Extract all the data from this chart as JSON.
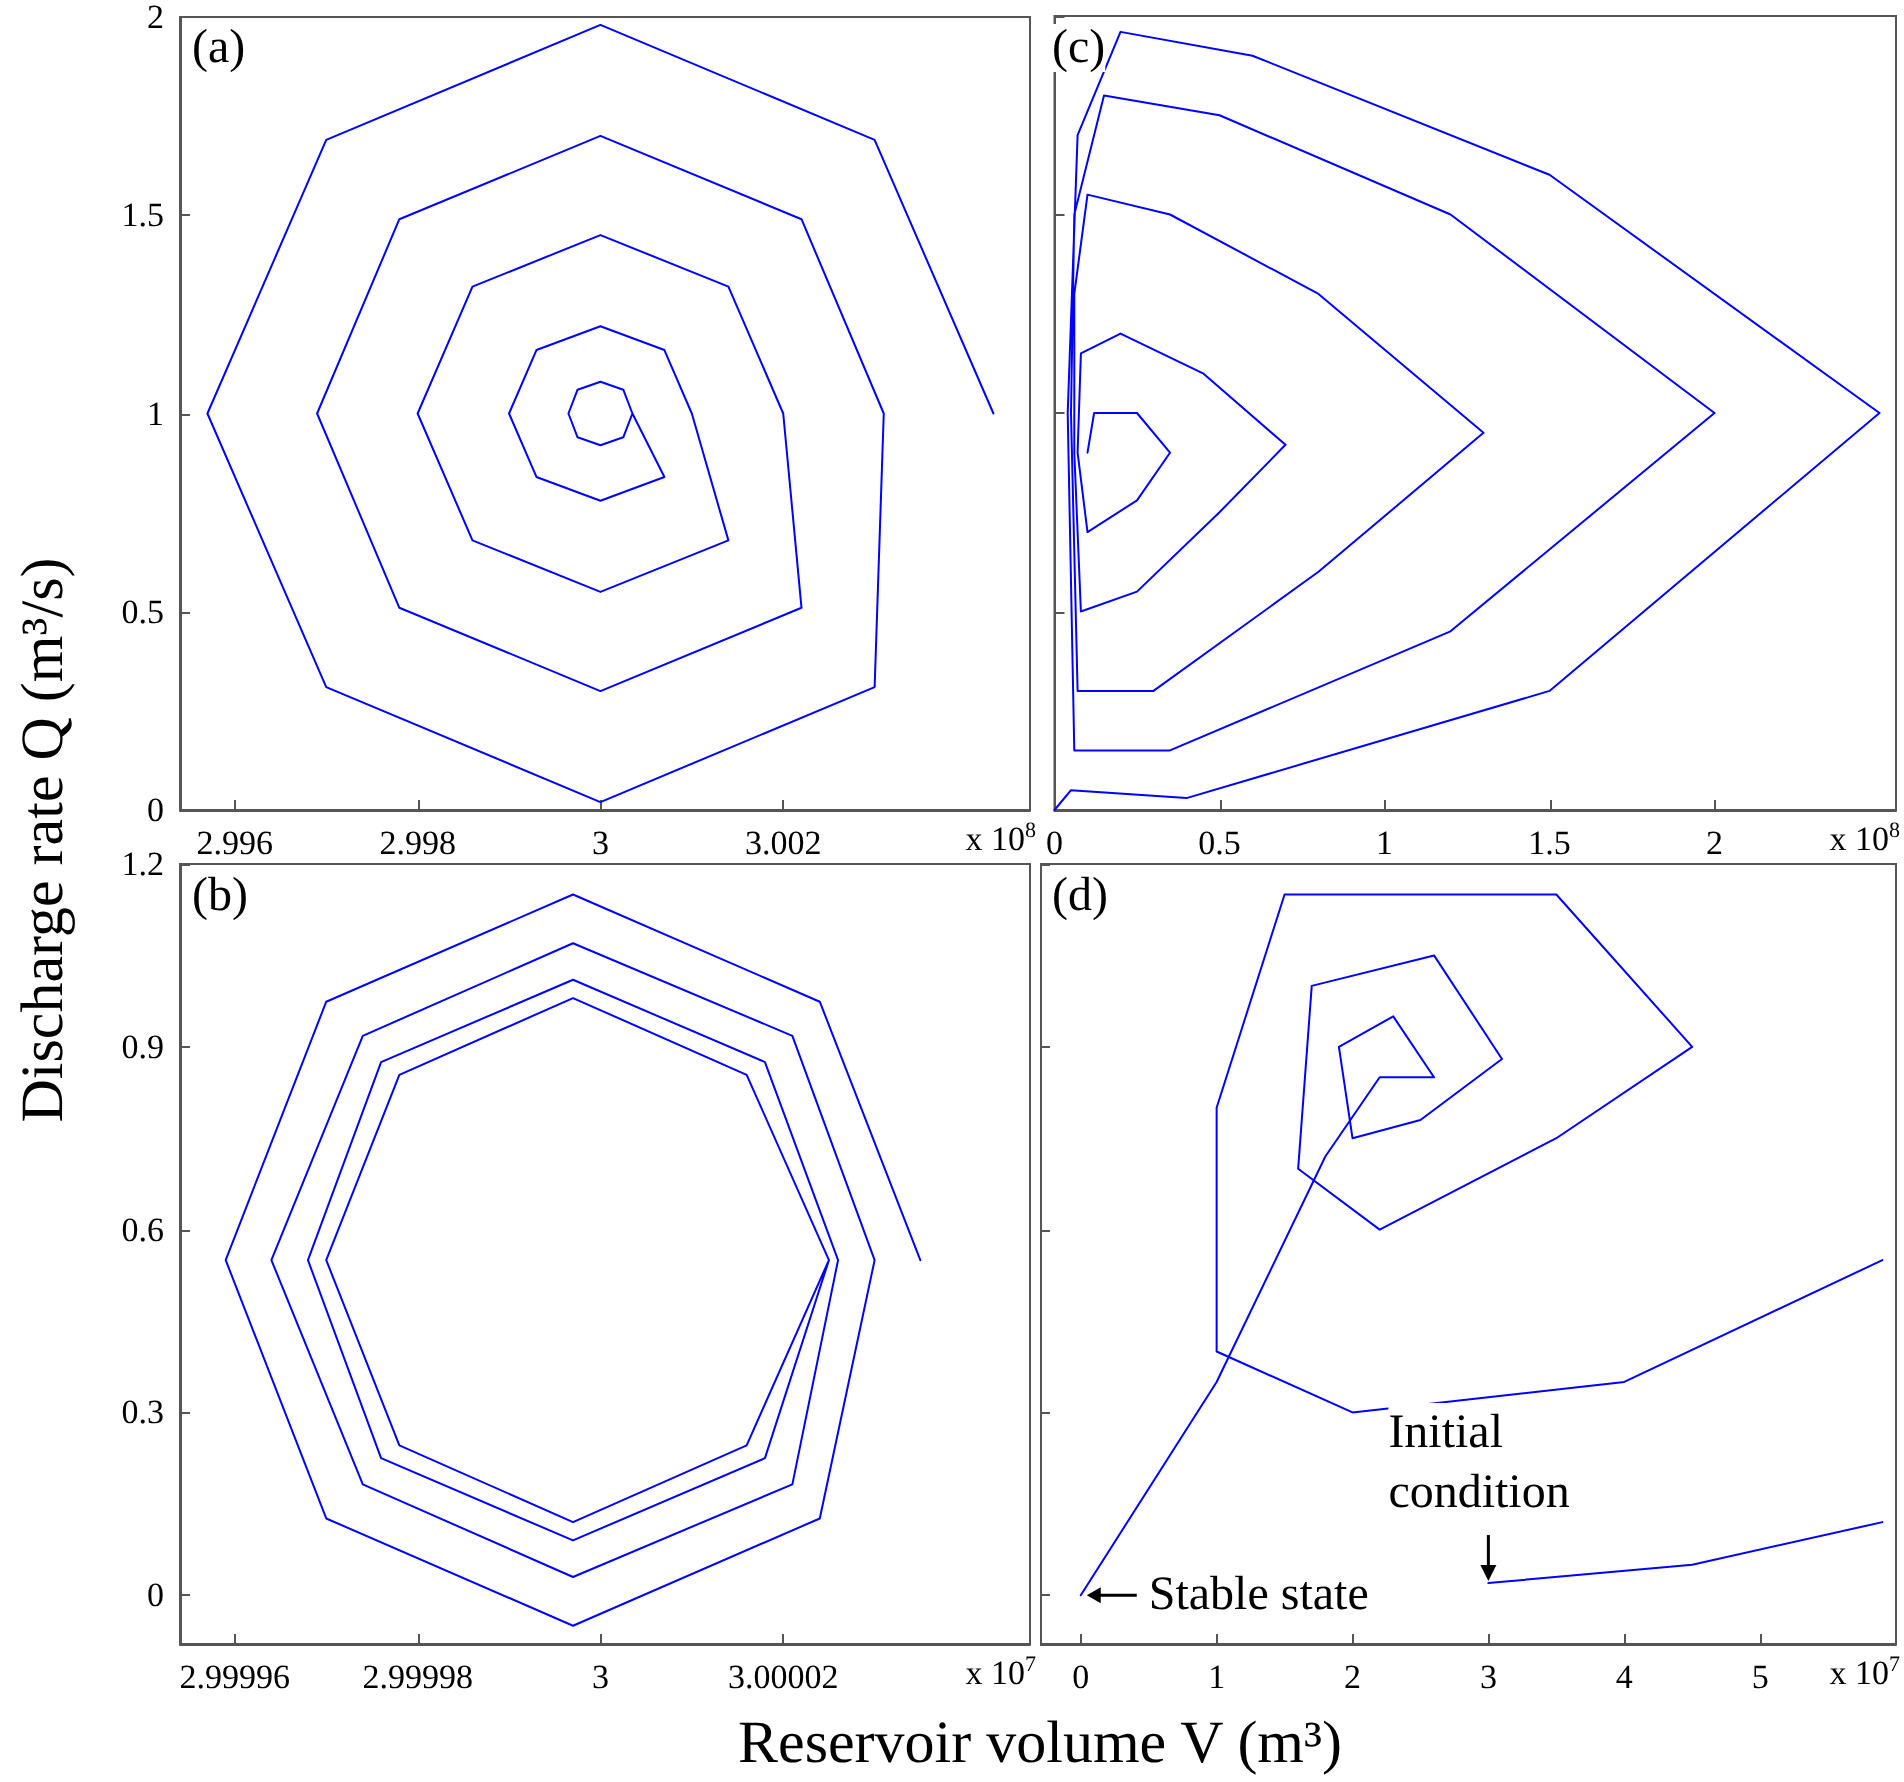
{
  "chart_data": [
    {
      "type": "line",
      "annotations": [
        "(a)",
        "x 10$^{8}$"
      ],
      "ylabel": "Discharge rate Q (m³/s)",
      "xlim": [
        2.9954,
        3.0047
      ],
      "ylim": [
        0,
        2
      ],
      "xticks": [
        2.996,
        2.998,
        3,
        3.002
      ],
      "yticks": [
        0,
        0.5,
        1,
        1.5,
        2
      ],
      "grid": false,
      "marker": "none",
      "line_style": "solid",
      "series": [
        {
          "color": "#0000ff",
          "x": [
            3.0043,
            3.003,
            3,
            2.997,
            2.9957,
            2.997,
            3,
            3.003,
            3.0031,
            3.0022,
            3,
            2.9978,
            2.9969,
            2.9978,
            3,
            3.0022,
            3.002,
            3.0014,
            3,
            2.9986,
            2.998,
            2.9986,
            3,
            3.0014,
            3.001,
            3.0007,
            3,
            2.9993,
            2.999,
            2.9993,
            3,
            3.0007,
            3.00035,
            3.00025,
            3,
            2.99975,
            2.99965,
            2.99975,
            3,
            3.00025,
            3.00035
          ],
          "values": [
            1,
            1.69,
            1.98,
            1.69,
            1,
            0.31,
            0.02,
            0.31,
            1,
            1.49,
            1.7,
            1.49,
            1,
            0.51,
            0.3,
            0.51,
            1,
            1.32,
            1.45,
            1.32,
            1,
            0.68,
            0.55,
            0.68,
            1,
            1.16,
            1.22,
            1.16,
            1,
            0.84,
            0.78,
            0.84,
            1,
            1.06,
            1.08,
            1.06,
            1,
            0.94,
            0.92,
            0.94,
            1
          ]
        }
      ]
    },
    {
      "type": "line",
      "annotations": [
        "(c)",
        "x 10$^{8}$"
      ],
      "xlim": [
        0,
        2.55
      ],
      "ylim": [
        0,
        2
      ],
      "xticks": [
        0,
        0.5,
        1,
        1.5,
        2
      ],
      "yticks": [
        0,
        0.5,
        1,
        1.5,
        2
      ],
      "tick_labels": "x",
      "grid": false,
      "marker": "none",
      "line_style": "solid",
      "series": [
        {
          "color": "#0000ff",
          "x": [
            0,
            0.05,
            0.4,
            1.5,
            2.5,
            1.5,
            0.6,
            0.2,
            0.07,
            0.04,
            0.06,
            0.35,
            1.2,
            2.0,
            1.2,
            0.5,
            0.15,
            0.06,
            0.05,
            0.07,
            0.3,
            0.8,
            1.3,
            0.8,
            0.35,
            0.1,
            0.06,
            0.06,
            0.08,
            0.25,
            0.5,
            0.7,
            0.45,
            0.2,
            0.08,
            0.07,
            0.1,
            0.25,
            0.35,
            0.25,
            0.12,
            0.1
          ],
          "values": [
            0,
            0.05,
            0.03,
            0.3,
            1,
            1.6,
            1.9,
            1.96,
            1.7,
            1,
            0.15,
            0.15,
            0.45,
            1,
            1.5,
            1.75,
            1.8,
            1.5,
            1,
            0.3,
            0.3,
            0.6,
            0.95,
            1.3,
            1.5,
            1.55,
            1.3,
            0.9,
            0.5,
            0.55,
            0.75,
            0.92,
            1.1,
            1.2,
            1.15,
            0.9,
            0.7,
            0.78,
            0.9,
            1.0,
            1.0,
            0.9
          ]
        }
      ]
    },
    {
      "type": "line",
      "annotations": [
        "(b)",
        "x 10$^{7}$"
      ],
      "xlabel": "Reservoir volume V (m³)",
      "xlim": [
        2.999954,
        3.000047
      ],
      "ylim": [
        -0.08,
        1.2
      ],
      "xticks": [
        2.99996,
        2.99998,
        3,
        3.00002
      ],
      "yticks": [
        0,
        0.3,
        0.6,
        0.9,
        1.2
      ],
      "grid": false,
      "marker": "none",
      "line_style": "solid",
      "series": [
        {
          "color": "#0000ff",
          "x": [
            3.000035,
            3.000024,
            2.999997,
            2.99997,
            2.999959,
            2.99997,
            2.999997,
            3.000024,
            3.00003,
            3.000021,
            2.999997,
            2.999974,
            2.999964,
            2.999974,
            2.999997,
            3.000021,
            3.000026,
            3.000018,
            2.999997,
            2.999976,
            2.999968,
            2.999976,
            2.999997,
            3.000018,
            3.000025,
            3.000016,
            2.999997,
            2.999978,
            2.99997,
            2.999978,
            2.999997,
            3.000016,
            3.000025
          ],
          "values": [
            0.55,
            0.974,
            1.15,
            0.974,
            0.55,
            0.126,
            -0.05,
            0.126,
            0.55,
            0.918,
            1.07,
            0.918,
            0.55,
            0.182,
            0.03,
            0.182,
            0.55,
            0.875,
            1.01,
            0.875,
            0.55,
            0.225,
            0.09,
            0.225,
            0.55,
            0.854,
            0.98,
            0.854,
            0.55,
            0.246,
            0.12,
            0.246,
            0.55
          ]
        }
      ]
    },
    {
      "type": "line",
      "annotations": [
        "(d)",
        "x 10$^{7}$",
        {
          "text": "Stable state",
          "x": 0,
          "y": 0
        },
        {
          "text": "Initial condition",
          "x": 3,
          "y": 0.02
        }
      ],
      "xlim": [
        -0.3,
        6
      ],
      "ylim": [
        -0.08,
        1.2
      ],
      "xticks": [
        0,
        1,
        2,
        3,
        4,
        5
      ],
      "yticks": [
        0,
        0.3,
        0.6,
        0.9,
        1.2
      ],
      "tick_labels": "x",
      "grid": false,
      "marker": "none",
      "line_style": "solid",
      "series": [
        {
          "color": "#0000ff",
          "x": [
            0,
            1,
            1.8,
            2.2,
            2.6,
            2.3,
            1.9,
            2.0,
            2.5,
            3.1,
            2.6,
            1.7,
            1.6,
            2.2,
            3.5,
            4.5,
            3.5,
            1.5,
            1.0,
            1.0,
            2.0,
            4.0,
            5.9
          ],
          "values": [
            0,
            0.35,
            0.72,
            0.85,
            0.85,
            0.95,
            0.9,
            0.75,
            0.78,
            0.88,
            1.05,
            1.0,
            0.7,
            0.6,
            0.75,
            0.9,
            1.15,
            1.15,
            0.8,
            0.4,
            0.3,
            0.35,
            0.55
          ]
        },
        {
          "color": "#0000ff",
          "x": [
            3,
            4.5,
            5.9
          ],
          "values": [
            0.02,
            0.05,
            0.12
          ]
        }
      ]
    }
  ]
}
